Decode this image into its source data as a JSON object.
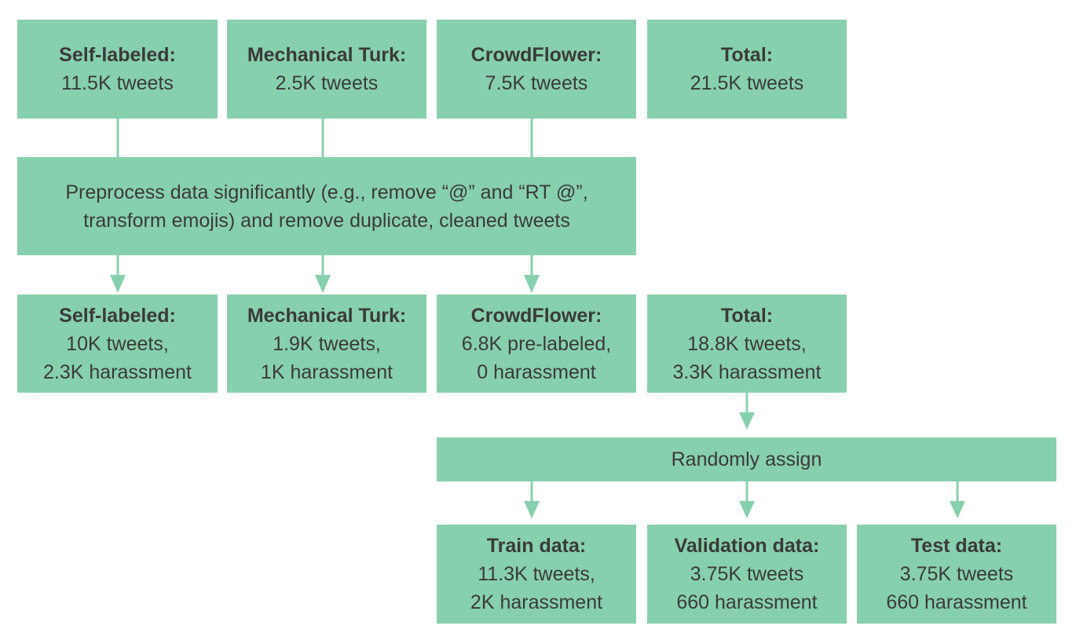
{
  "sources": [
    {
      "title": "Self-labeled:",
      "line1": "11.5K tweets"
    },
    {
      "title": "Mechanical Turk:",
      "line1": "2.5K tweets"
    },
    {
      "title": "CrowdFlower:",
      "line1": "7.5K tweets"
    },
    {
      "title": "Total:",
      "line1": "21.5K tweets"
    }
  ],
  "preprocess": {
    "line1": "Preprocess data significantly (e.g., remove “@” and “RT @”,",
    "line2": "transform emojis) and remove duplicate, cleaned tweets"
  },
  "cleaned": [
    {
      "title": "Self-labeled:",
      "line1": "10K tweets,",
      "line2": "2.3K harassment"
    },
    {
      "title": "Mechanical Turk:",
      "line1": "1.9K tweets,",
      "line2": "1K harassment"
    },
    {
      "title": "CrowdFlower:",
      "line1": "6.8K pre-labeled,",
      "line2": "0 harassment"
    },
    {
      "title": "Total:",
      "line1": "18.8K tweets,",
      "line2": "3.3K harassment"
    }
  ],
  "assign": {
    "label": "Randomly assign"
  },
  "splits": [
    {
      "title": "Train data:",
      "line1": "11.3K tweets,",
      "line2": "2K harassment"
    },
    {
      "title": "Validation data:",
      "line1": "3.75K tweets",
      "line2": "660 harassment"
    },
    {
      "title": "Test data:",
      "line1": "3.75K tweets",
      "line2": "660 harassment"
    }
  ],
  "colors": {
    "box_fill": "#87d0ad",
    "text": "#3a3a3a"
  }
}
